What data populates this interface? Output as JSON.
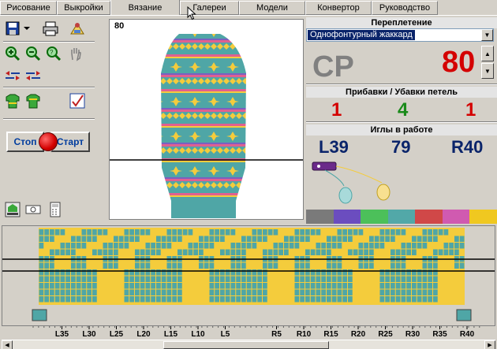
{
  "tabs": [
    {
      "label": "Рисование",
      "w": 72
    },
    {
      "label": "Выкройки",
      "w": 68
    },
    {
      "label": "Вязание",
      "w": 88
    },
    {
      "label": "Галереи",
      "w": 75
    },
    {
      "label": "Модели",
      "w": 84
    },
    {
      "label": "Конвертор",
      "w": 84
    },
    {
      "label": "Руководство",
      "w": 84
    }
  ],
  "active_tab": "Вязание",
  "toolbar": {
    "stop_label": "Стоп",
    "start_label": "Старт"
  },
  "preview": {
    "row_label": "80"
  },
  "right": {
    "interlace_title": "Переплетение",
    "interlace_value": "Однофонтурный жаккард",
    "carriage_code": "CP",
    "row_number": "80",
    "incdec_title": "Прибавки / Убавки петель",
    "inc_left": "1",
    "inc_mid": "4",
    "inc_right": "1",
    "needles_title": "Иглы в работе",
    "needle_left": "L39",
    "needle_count": "79",
    "needle_right": "R40"
  },
  "palette": [
    "#7a7a7a",
    "#6b4dbf",
    "#4cc05a",
    "#52a8a8",
    "#d04848",
    "#d05ab0",
    "#f0c820"
  ],
  "needle_ticks": {
    "left": [
      "L35",
      "L30",
      "L25",
      "L20",
      "L15",
      "L10",
      "L5"
    ],
    "right": [
      "R5",
      "R10",
      "R15",
      "R20",
      "R25",
      "R30",
      "R35",
      "R40"
    ]
  },
  "colors": {
    "teal": "#4fa6a6",
    "yellow": "#f4cc3c",
    "red": "#d40000",
    "gray_text": "#808080",
    "green": "#1a8a1a",
    "navy": "#0a246a"
  }
}
